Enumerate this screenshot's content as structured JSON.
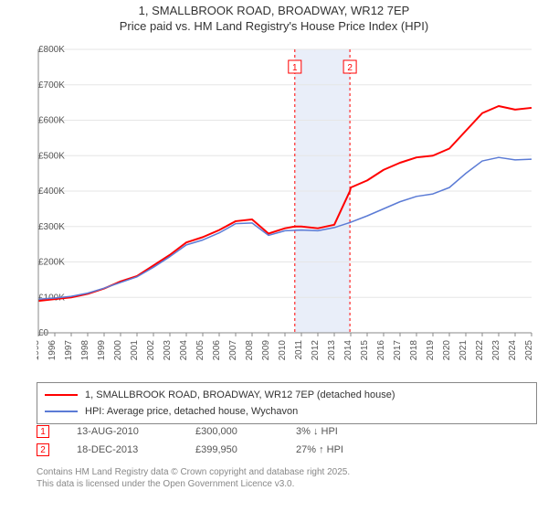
{
  "header": {
    "address": "1, SMALLBROOK ROAD, BROADWAY, WR12 7EP",
    "subtitle": "Price paid vs. HM Land Registry's House Price Index (HPI)"
  },
  "chart": {
    "type": "line",
    "background_color": "#ffffff",
    "grid_color": "#e6e6e6",
    "axis_color": "#888888",
    "tick_font_size": 10,
    "y_axis": {
      "min": 0,
      "max": 800000,
      "tick_step": 100000,
      "format": "£{v}K",
      "divide": 1000
    },
    "x_axis": {
      "min": 1995,
      "max": 2025,
      "tick_step": 1,
      "rotate": -90
    },
    "highlight_band": {
      "from": 2010.6,
      "to": 2013.95,
      "fill": "#e9eef9"
    },
    "markers": [
      {
        "id": "1",
        "x": 2010.6,
        "line_color": "#ff0000",
        "dash": "3,3"
      },
      {
        "id": "2",
        "x": 2013.95,
        "line_color": "#ff0000",
        "dash": "3,3"
      }
    ],
    "series": [
      {
        "name": "price_paid",
        "label": "1, SMALLBROOK ROAD, BROADWAY, WR12 7EP (detached house)",
        "color": "#ff0000",
        "line_width": 2,
        "data": [
          [
            1995,
            90000
          ],
          [
            1996,
            95000
          ],
          [
            1997,
            100000
          ],
          [
            1998,
            110000
          ],
          [
            1999,
            125000
          ],
          [
            2000,
            145000
          ],
          [
            2001,
            160000
          ],
          [
            2002,
            190000
          ],
          [
            2003,
            220000
          ],
          [
            2004,
            255000
          ],
          [
            2005,
            270000
          ],
          [
            2006,
            290000
          ],
          [
            2007,
            315000
          ],
          [
            2008,
            320000
          ],
          [
            2009,
            280000
          ],
          [
            2010,
            295000
          ],
          [
            2010.6,
            300000
          ],
          [
            2011,
            300000
          ],
          [
            2012,
            295000
          ],
          [
            2013,
            305000
          ],
          [
            2013.95,
            399950
          ],
          [
            2014,
            410000
          ],
          [
            2015,
            430000
          ],
          [
            2016,
            460000
          ],
          [
            2017,
            480000
          ],
          [
            2018,
            495000
          ],
          [
            2019,
            500000
          ],
          [
            2020,
            520000
          ],
          [
            2021,
            570000
          ],
          [
            2022,
            620000
          ],
          [
            2023,
            640000
          ],
          [
            2024,
            630000
          ],
          [
            2025,
            635000
          ]
        ]
      },
      {
        "name": "hpi",
        "label": "HPI: Average price, detached house, Wychavon",
        "color": "#5b7bd5",
        "line_width": 1.5,
        "data": [
          [
            1995,
            95000
          ],
          [
            1996,
            98000
          ],
          [
            1997,
            103000
          ],
          [
            1998,
            112000
          ],
          [
            1999,
            126000
          ],
          [
            2000,
            142000
          ],
          [
            2001,
            158000
          ],
          [
            2002,
            185000
          ],
          [
            2003,
            215000
          ],
          [
            2004,
            248000
          ],
          [
            2005,
            262000
          ],
          [
            2006,
            282000
          ],
          [
            2007,
            308000
          ],
          [
            2008,
            310000
          ],
          [
            2009,
            275000
          ],
          [
            2010,
            288000
          ],
          [
            2011,
            290000
          ],
          [
            2012,
            288000
          ],
          [
            2013,
            297000
          ],
          [
            2014,
            312000
          ],
          [
            2015,
            330000
          ],
          [
            2016,
            350000
          ],
          [
            2017,
            370000
          ],
          [
            2018,
            385000
          ],
          [
            2019,
            392000
          ],
          [
            2020,
            410000
          ],
          [
            2021,
            450000
          ],
          [
            2022,
            485000
          ],
          [
            2023,
            495000
          ],
          [
            2024,
            488000
          ],
          [
            2025,
            490000
          ]
        ]
      }
    ]
  },
  "legend": {
    "items": [
      {
        "color": "#ff0000",
        "width": 2,
        "label": "1, SMALLBROOK ROAD, BROADWAY, WR12 7EP (detached house)"
      },
      {
        "color": "#5b7bd5",
        "width": 1.5,
        "label": "HPI: Average price, detached house, Wychavon"
      }
    ]
  },
  "marker_table": {
    "rows": [
      {
        "id": "1",
        "date": "13-AUG-2010",
        "price": "£300,000",
        "delta": "3% ↓ HPI"
      },
      {
        "id": "2",
        "date": "18-DEC-2013",
        "price": "£399,950",
        "delta": "27% ↑ HPI"
      }
    ]
  },
  "footer": {
    "line1": "Contains HM Land Registry data © Crown copyright and database right 2025.",
    "line2": "This data is licensed under the Open Government Licence v3.0."
  }
}
